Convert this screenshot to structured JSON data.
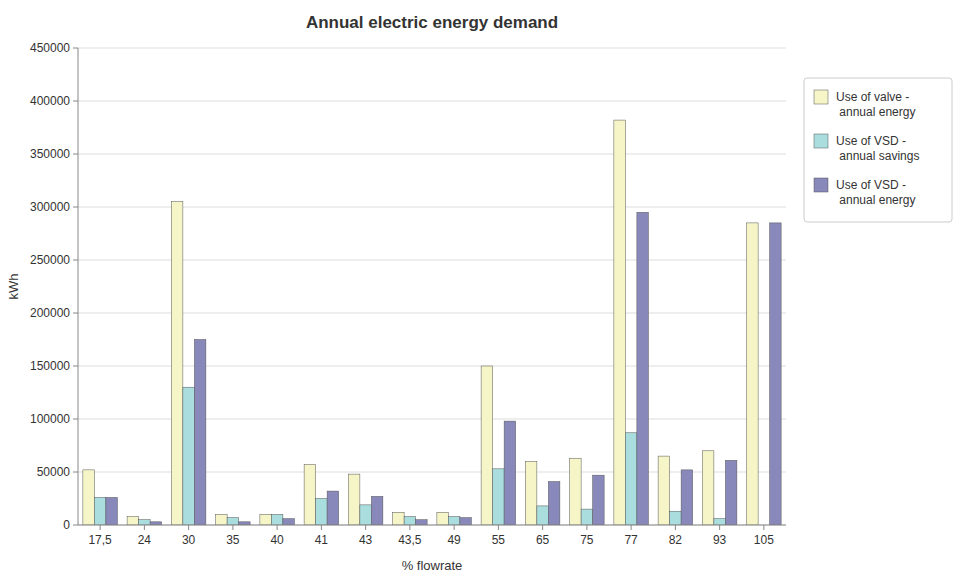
{
  "chart_data": {
    "type": "bar",
    "title": "Annual electric energy demand",
    "x_label": "% flowrate",
    "y_label": "kWh",
    "categories": [
      "17,5",
      "24",
      "30",
      "35",
      "40",
      "41",
      "43",
      "43,5",
      "49",
      "55",
      "65",
      "75",
      "77",
      "82",
      "93",
      "105"
    ],
    "series": [
      {
        "name": "Use of valve -\n  annual energy",
        "color": "#f5f5c8",
        "values": [
          52000,
          8000,
          305000,
          10000,
          10000,
          57000,
          48000,
          12000,
          12000,
          150000,
          60000,
          63000,
          382000,
          65000,
          70000,
          285000
        ]
      },
      {
        "name": "Use of VSD -\n  annual savings",
        "color": "#aadddd",
        "values": [
          26000,
          5000,
          130000,
          7000,
          10000,
          25000,
          19000,
          8000,
          8000,
          53000,
          18000,
          15000,
          87000,
          13000,
          6000,
          0
        ]
      },
      {
        "name": "Use of VSD -\n  annual energy",
        "color": "#8888bb",
        "values": [
          26000,
          3000,
          175000,
          3000,
          6000,
          32000,
          27000,
          5000,
          7000,
          98000,
          41000,
          47000,
          295000,
          52000,
          61000,
          285000
        ]
      }
    ],
    "ylim": [
      0,
      450000
    ],
    "yticks": [
      0,
      50000,
      100000,
      150000,
      200000,
      250000,
      300000,
      350000,
      400000,
      450000
    ],
    "grid": true,
    "legend": "right"
  }
}
